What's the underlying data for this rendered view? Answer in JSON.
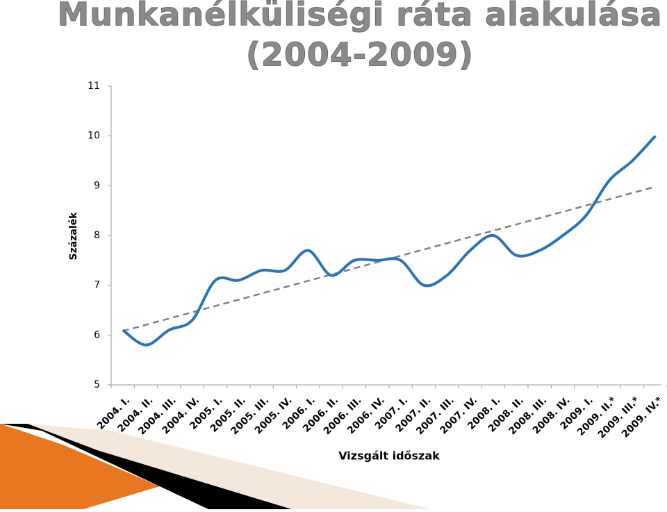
{
  "chart_data": {
    "type": "line",
    "title": [
      "Munkanélküliségi ráta alakulása",
      "(2004-2009)"
    ],
    "y_label": "Százalék",
    "x_label": "Vizsgált időszak",
    "categories": [
      "2004. I.",
      "2004. II.",
      "2004. III.",
      "2004. IV.",
      "2005. I.",
      "2005. II.",
      "2005. III.",
      "2005. IV.",
      "2006. I.",
      "2006. II.",
      "2006. III.",
      "2006. IV.",
      "2007. I.",
      "2007. II.",
      "2007. III.",
      "2007. IV.",
      "2008. I.",
      "2008. II.",
      "2008. III.",
      "2008. IV.",
      "2009. I.",
      "2009. II.*",
      "2009. III.*",
      "2009. IV.*"
    ],
    "series": [
      {
        "color": "#2a73b8",
        "values": [
          6.1,
          5.8,
          6.1,
          6.3,
          7.1,
          7.1,
          7.3,
          7.3,
          7.7,
          7.2,
          7.5,
          7.5,
          7.5,
          7.0,
          7.2,
          7.7,
          8.0,
          7.6,
          7.7,
          8.0,
          8.4,
          9.1,
          9.5,
          10.0
        ]
      }
    ],
    "trendline": {
      "start": 6.08,
      "end": 8.98,
      "color": "#7f7f7f"
    },
    "ylim": [
      5,
      11
    ],
    "yticks": [
      5,
      6,
      7,
      8,
      9,
      10,
      11
    ],
    "smooth": true
  }
}
